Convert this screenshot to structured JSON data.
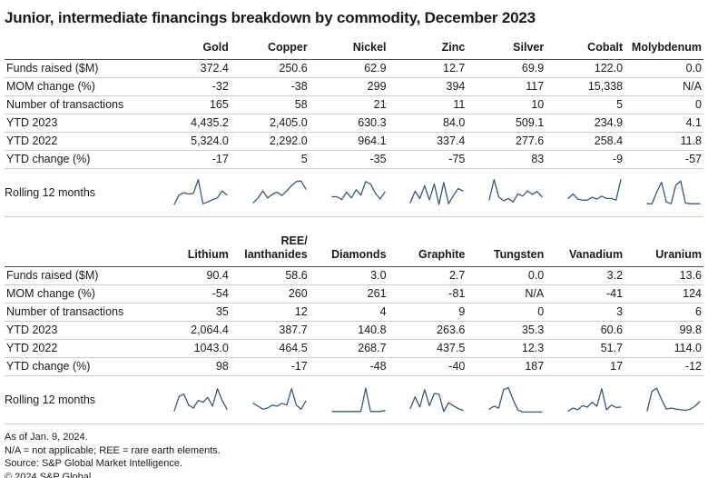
{
  "title": "Junior, intermediate financings breakdown by commodity, December 2023",
  "chart_data": [
    {
      "type": "table",
      "columns": [
        "Gold",
        "Copper",
        "Nickel",
        "Zinc",
        "Silver",
        "Cobalt",
        "Molybdenum"
      ],
      "rows": [
        {
          "label": "Funds raised ($M)",
          "values": [
            "372.4",
            "250.6",
            "62.9",
            "12.7",
            "69.9",
            "122.0",
            "0.0"
          ]
        },
        {
          "label": "MOM change (%)",
          "values": [
            "-32",
            "-38",
            "299",
            "394",
            "117",
            "15,338",
            "N/A"
          ]
        },
        {
          "label": "Number of transactions",
          "values": [
            "165",
            "58",
            "21",
            "11",
            "10",
            "5",
            "0"
          ]
        },
        {
          "label": "YTD 2023",
          "values": [
            "4,435.2",
            "2,405.0",
            "630.3",
            "84.0",
            "509.1",
            "234.9",
            "4.1"
          ]
        },
        {
          "label": "YTD 2022",
          "values": [
            "5,324.0",
            "2,292.0",
            "964.1",
            "337.4",
            "277.6",
            "258.4",
            "11.8"
          ]
        },
        {
          "label": "YTD change (%)",
          "values": [
            "-17",
            "5",
            "-35",
            "-75",
            "83",
            "-9",
            "-57"
          ]
        }
      ],
      "sparkline_row_label": "Rolling 12 months",
      "sparkline_type": "line",
      "sparklines": [
        {
          "name": "Gold",
          "normalized": [
            10,
            42,
            50,
            45,
            48,
            95,
            12,
            18,
            26,
            32,
            56,
            42
          ]
        },
        {
          "name": "Copper",
          "normalized": [
            15,
            32,
            56,
            32,
            44,
            52,
            40,
            56,
            74,
            88,
            90,
            62
          ]
        },
        {
          "name": "Nickel",
          "normalized": [
            36,
            36,
            26,
            52,
            32,
            60,
            42,
            88,
            80,
            48,
            28,
            52
          ]
        },
        {
          "name": "Zinc",
          "normalized": [
            15,
            55,
            30,
            74,
            25,
            80,
            10,
            85,
            12,
            40,
            64,
            56
          ]
        },
        {
          "name": "Silver",
          "normalized": [
            25,
            95,
            35,
            22,
            30,
            18,
            46,
            38,
            56,
            44,
            54,
            36
          ]
        },
        {
          "name": "Cobalt",
          "normalized": [
            30,
            46,
            28,
            24,
            24,
            34,
            28,
            38,
            30,
            30,
            24,
            95
          ]
        },
        {
          "name": "Molybdenum",
          "normalized": [
            12,
            12,
            52,
            86,
            18,
            12,
            76,
            90,
            14,
            12,
            12,
            12
          ]
        }
      ]
    },
    {
      "type": "table",
      "columns": [
        "Lithium",
        "REE/\nlanthanides",
        "Diamonds",
        "Graphite",
        "Tungsten",
        "Vanadium",
        "Uranium"
      ],
      "rows": [
        {
          "label": "Funds raised ($M)",
          "values": [
            "90.4",
            "58.6",
            "3.0",
            "2.7",
            "0.0",
            "3.2",
            "13.6"
          ]
        },
        {
          "label": "MOM change (%)",
          "values": [
            "-54",
            "260",
            "261",
            "-81",
            "N/A",
            "-41",
            "124"
          ]
        },
        {
          "label": "Number of transactions",
          "values": [
            "35",
            "12",
            "4",
            "9",
            "0",
            "3",
            "6"
          ]
        },
        {
          "label": "YTD 2023",
          "values": [
            "2,064.4",
            "387.7",
            "140.8",
            "263.6",
            "35.3",
            "60.6",
            "99.8"
          ]
        },
        {
          "label": "YTD 2022",
          "values": [
            "1043.0",
            "464.5",
            "268.7",
            "437.5",
            "12.3",
            "51.7",
            "114.0"
          ]
        },
        {
          "label": "YTD change (%)",
          "values": [
            "98",
            "-17",
            "-48",
            "-40",
            "187",
            "17",
            "-12"
          ]
        }
      ],
      "sparkline_row_label": "Rolling 12 months",
      "sparkline_type": "line",
      "sparklines": [
        {
          "name": "Lithium",
          "normalized": [
            12,
            62,
            70,
            32,
            22,
            48,
            42,
            58,
            28,
            88,
            48,
            18
          ]
        },
        {
          "name": "REE/lanthanides",
          "normalized": [
            38,
            28,
            18,
            22,
            32,
            28,
            38,
            32,
            88,
            32,
            18,
            46
          ]
        },
        {
          "name": "Diamonds",
          "normalized": [
            10,
            10,
            10,
            10,
            10,
            10,
            10,
            90,
            10,
            10,
            10,
            13
          ]
        },
        {
          "name": "Graphite",
          "normalized": [
            20,
            60,
            25,
            85,
            30,
            72,
            70,
            10,
            40,
            30,
            20,
            14
          ]
        },
        {
          "name": "Tungsten",
          "normalized": [
            18,
            28,
            22,
            85,
            92,
            50,
            15,
            8,
            8,
            8,
            8,
            8
          ]
        },
        {
          "name": "Vanadium",
          "normalized": [
            12,
            22,
            16,
            30,
            25,
            42,
            28,
            88,
            16,
            32,
            24,
            25
          ]
        },
        {
          "name": "Uranium",
          "normalized": [
            12,
            80,
            90,
            52,
            18,
            22,
            18,
            16,
            14,
            18,
            28,
            44
          ]
        }
      ]
    }
  ],
  "footnotes": [
    "As of Jan. 9, 2024.",
    "N/A = not applicable; REE = rare earth elements.",
    "Source: S&P Global Market Intelligence.",
    "© 2024 S&P Global."
  ],
  "colors": {
    "sparkline": "#3b5874",
    "header_border": "#4a4a4a",
    "row_border": "#cccccc",
    "text": "#1a1a1a"
  }
}
